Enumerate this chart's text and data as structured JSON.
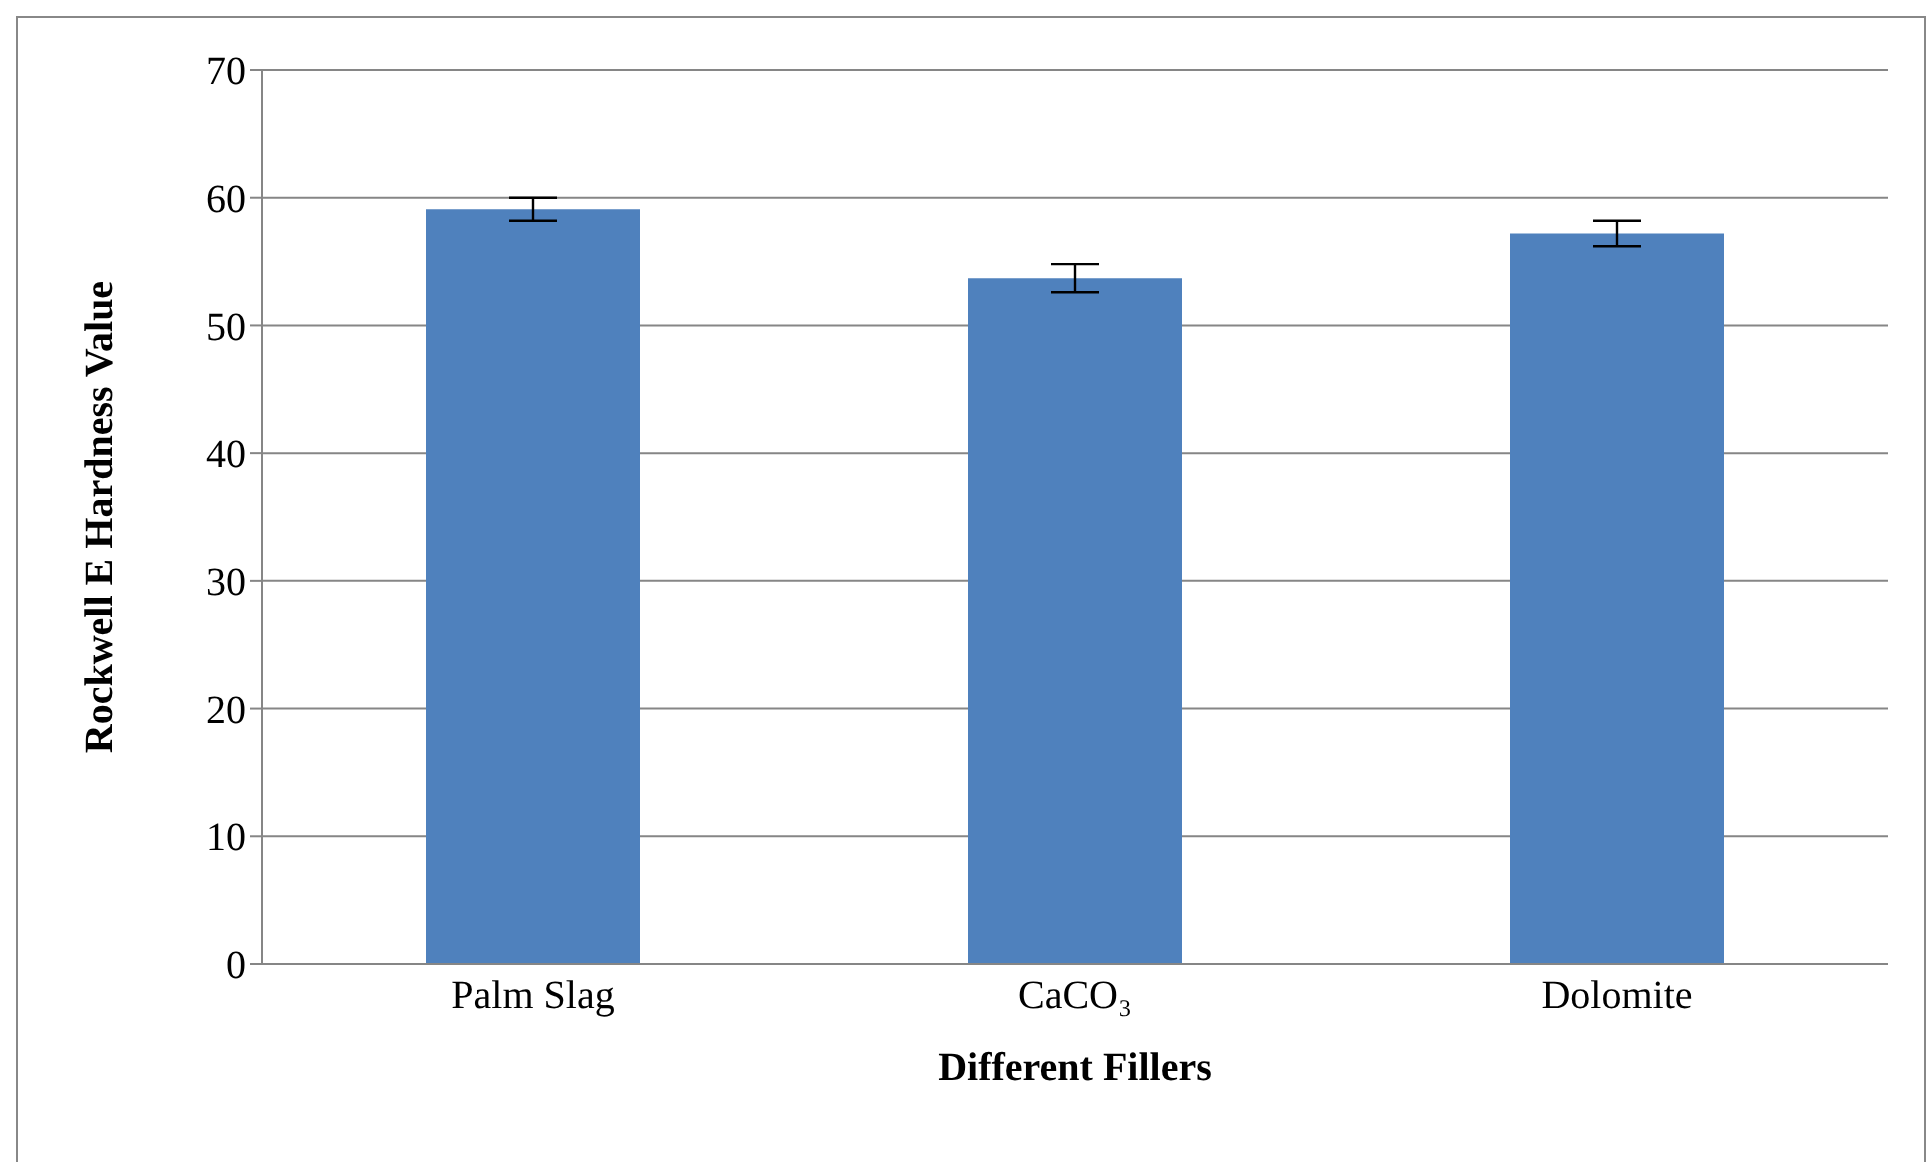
{
  "chart_data": {
    "type": "bar",
    "xlabel": "Different Fillers",
    "ylabel": "Rockwell E Hardness Value",
    "categories": [
      "Palm Slag",
      "CaCO₃",
      "Dolomite"
    ],
    "values": [
      59.1,
      53.7,
      57.2
    ],
    "errors": [
      0.9,
      1.1,
      1.0
    ],
    "color": "#4f81bd",
    "ylim": [
      0,
      70
    ],
    "yticks": [
      0,
      10,
      20,
      30,
      40,
      50,
      60,
      70
    ],
    "grid": "y",
    "legend": false
  }
}
